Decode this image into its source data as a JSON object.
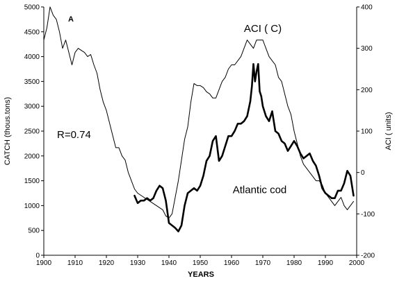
{
  "chart_data": {
    "type": "line",
    "panel_label": "A",
    "correlation_label": "R=0.74",
    "xlabel": "YEARS",
    "ylabel_left": "CATCH (thous.tons)",
    "ylabel_right": "ACI ( units)",
    "xlim": [
      1900,
      2000
    ],
    "ylim_left": [
      0,
      5000
    ],
    "ylim_right": [
      -200,
      400
    ],
    "x_ticks": [
      1900,
      1910,
      1920,
      1930,
      1940,
      1950,
      1960,
      1970,
      1980,
      1990,
      2000
    ],
    "y_left_ticks": [
      0,
      500,
      1000,
      1500,
      2000,
      2500,
      3000,
      3500,
      4000,
      4500,
      5000
    ],
    "y_right_ticks": [
      -200,
      -100,
      0,
      100,
      200,
      300,
      400
    ],
    "series": [
      {
        "name": "ACI ( C)",
        "axis": "right",
        "style": "thin",
        "x": [
          1900,
          1901,
          1902,
          1903,
          1904,
          1905,
          1906,
          1907,
          1908,
          1909,
          1910,
          1911,
          1912,
          1913,
          1914,
          1915,
          1916,
          1917,
          1918,
          1919,
          1920,
          1921,
          1922,
          1923,
          1924,
          1925,
          1926,
          1927,
          1928,
          1929,
          1930,
          1931,
          1932,
          1933,
          1934,
          1935,
          1936,
          1937,
          1938,
          1939,
          1940,
          1941,
          1942,
          1943,
          1944,
          1945,
          1946,
          1947,
          1948,
          1949,
          1950,
          1951,
          1952,
          1953,
          1954,
          1955,
          1956,
          1957,
          1958,
          1959,
          1960,
          1961,
          1962,
          1963,
          1964,
          1965,
          1966,
          1967,
          1968,
          1969,
          1970,
          1971,
          1972,
          1973,
          1974,
          1975,
          1976,
          1977,
          1978,
          1979,
          1980,
          1981,
          1982,
          1983,
          1984,
          1985,
          1986,
          1987,
          1988,
          1989,
          1990,
          1991,
          1992,
          1993,
          1994,
          1995,
          1996,
          1997,
          1998,
          1999
        ],
        "values": [
          320,
          350,
          400,
          380,
          370,
          340,
          300,
          320,
          290,
          260,
          290,
          300,
          295,
          290,
          280,
          285,
          260,
          240,
          200,
          170,
          150,
          120,
          90,
          60,
          60,
          40,
          30,
          0,
          -20,
          -40,
          -50,
          -55,
          -60,
          -65,
          -70,
          -75,
          -80,
          -85,
          -90,
          -105,
          -110,
          -100,
          -60,
          -20,
          30,
          80,
          110,
          170,
          215,
          210,
          210,
          205,
          195,
          190,
          180,
          180,
          200,
          220,
          230,
          250,
          260,
          260,
          270,
          280,
          300,
          320,
          310,
          300,
          320,
          320,
          320,
          300,
          280,
          270,
          260,
          230,
          220,
          190,
          160,
          140,
          100,
          70,
          40,
          20,
          10,
          0,
          -10,
          -20,
          -20,
          -30,
          -50,
          -60,
          -70,
          -80,
          -70,
          -60,
          -80,
          -90,
          -80,
          -70
        ]
      },
      {
        "name": "Atlantic cod",
        "axis": "left",
        "style": "thick",
        "x": [
          1929,
          1930,
          1931,
          1932,
          1933,
          1934,
          1935,
          1936,
          1937,
          1938,
          1939,
          1940,
          1941,
          1942,
          1943,
          1944,
          1945,
          1946,
          1947,
          1948,
          1949,
          1950,
          1951,
          1952,
          1953,
          1954,
          1955,
          1956,
          1957,
          1958,
          1959,
          1960,
          1961,
          1962,
          1963,
          1964,
          1965,
          1966,
          1966.5,
          1967,
          1967.5,
          1968,
          1968.5,
          1969,
          1969.5,
          1970,
          1971,
          1972,
          1973,
          1974,
          1975,
          1976,
          1977,
          1978,
          1979,
          1980,
          1981,
          1982,
          1983,
          1984,
          1985,
          1986,
          1987,
          1988,
          1989,
          1990,
          1991,
          1992,
          1993,
          1994,
          1995,
          1996,
          1997,
          1998,
          1999
        ],
        "values": [
          1200,
          1050,
          1100,
          1100,
          1150,
          1100,
          1150,
          1300,
          1400,
          1350,
          1100,
          650,
          600,
          550,
          480,
          600,
          1000,
          1250,
          1300,
          1350,
          1300,
          1400,
          1600,
          1900,
          2000,
          2300,
          2400,
          1900,
          2000,
          2200,
          2400,
          2400,
          2500,
          2650,
          2650,
          2700,
          2800,
          3100,
          3400,
          3850,
          3500,
          3700,
          3850,
          3300,
          3200,
          3000,
          2800,
          2700,
          2900,
          2500,
          2450,
          2300,
          2250,
          2100,
          2200,
          2300,
          2200,
          2050,
          1950,
          2000,
          2050,
          1900,
          1800,
          1600,
          1350,
          1250,
          1200,
          1150,
          1150,
          1300,
          1300,
          1450,
          1700,
          1600,
          1200
        ]
      }
    ],
    "annotations": [
      {
        "text": "ACI ( C)",
        "x": 1970,
        "y_right": 340
      },
      {
        "text": "Atlantic cod",
        "x": 1969,
        "y_left": 1250
      }
    ]
  }
}
